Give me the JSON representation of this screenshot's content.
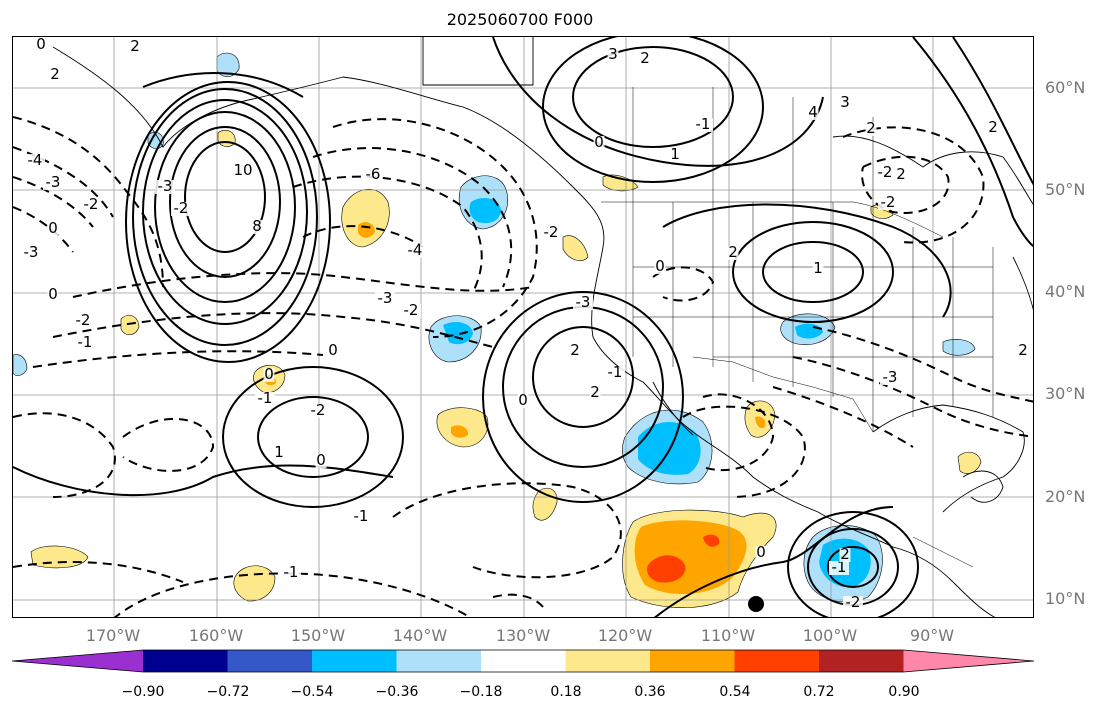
{
  "title": "2025060700 F000",
  "lat_labels": [
    "60°N",
    "50°N",
    "40°N",
    "30°N",
    "20°N",
    "10°N"
  ],
  "lon_labels": [
    "170°W",
    "160°W",
    "150°W",
    "140°W",
    "130°W",
    "120°W",
    "110°W",
    "100°W",
    "90°W"
  ],
  "colorbar": {
    "ticks": [
      "−0.90",
      "−0.72",
      "−0.54",
      "−0.36",
      "−0.18",
      "0.18",
      "0.36",
      "0.54",
      "0.72",
      "0.90"
    ],
    "colors": [
      "#9b30d0",
      "#000090",
      "#3458c8",
      "#00bfff",
      "#aee0fa",
      "#ffffff",
      "#fde98b",
      "#ffa500",
      "#ff4000",
      "#b22222",
      "#ff88aa"
    ]
  },
  "contour_labels": [
    "0",
    "2",
    "-3",
    "-4",
    "-2",
    "0",
    "-2",
    "-1",
    "-3",
    "0",
    "2",
    "-3",
    "-2",
    "10",
    "8",
    "-6",
    "-4",
    "-3",
    "-2",
    "0",
    "0",
    "-1",
    "-2",
    "0",
    "1",
    "2",
    "2",
    "-1",
    "0",
    "-1",
    "3",
    "2",
    "1",
    "0",
    "-1",
    "3",
    "4",
    "2",
    "-2",
    "2",
    "-2",
    "-3",
    "2",
    "1",
    "0",
    "-1",
    "2",
    "-2",
    "-1",
    "-3",
    "2",
    "0",
    "-2",
    "2"
  ]
}
